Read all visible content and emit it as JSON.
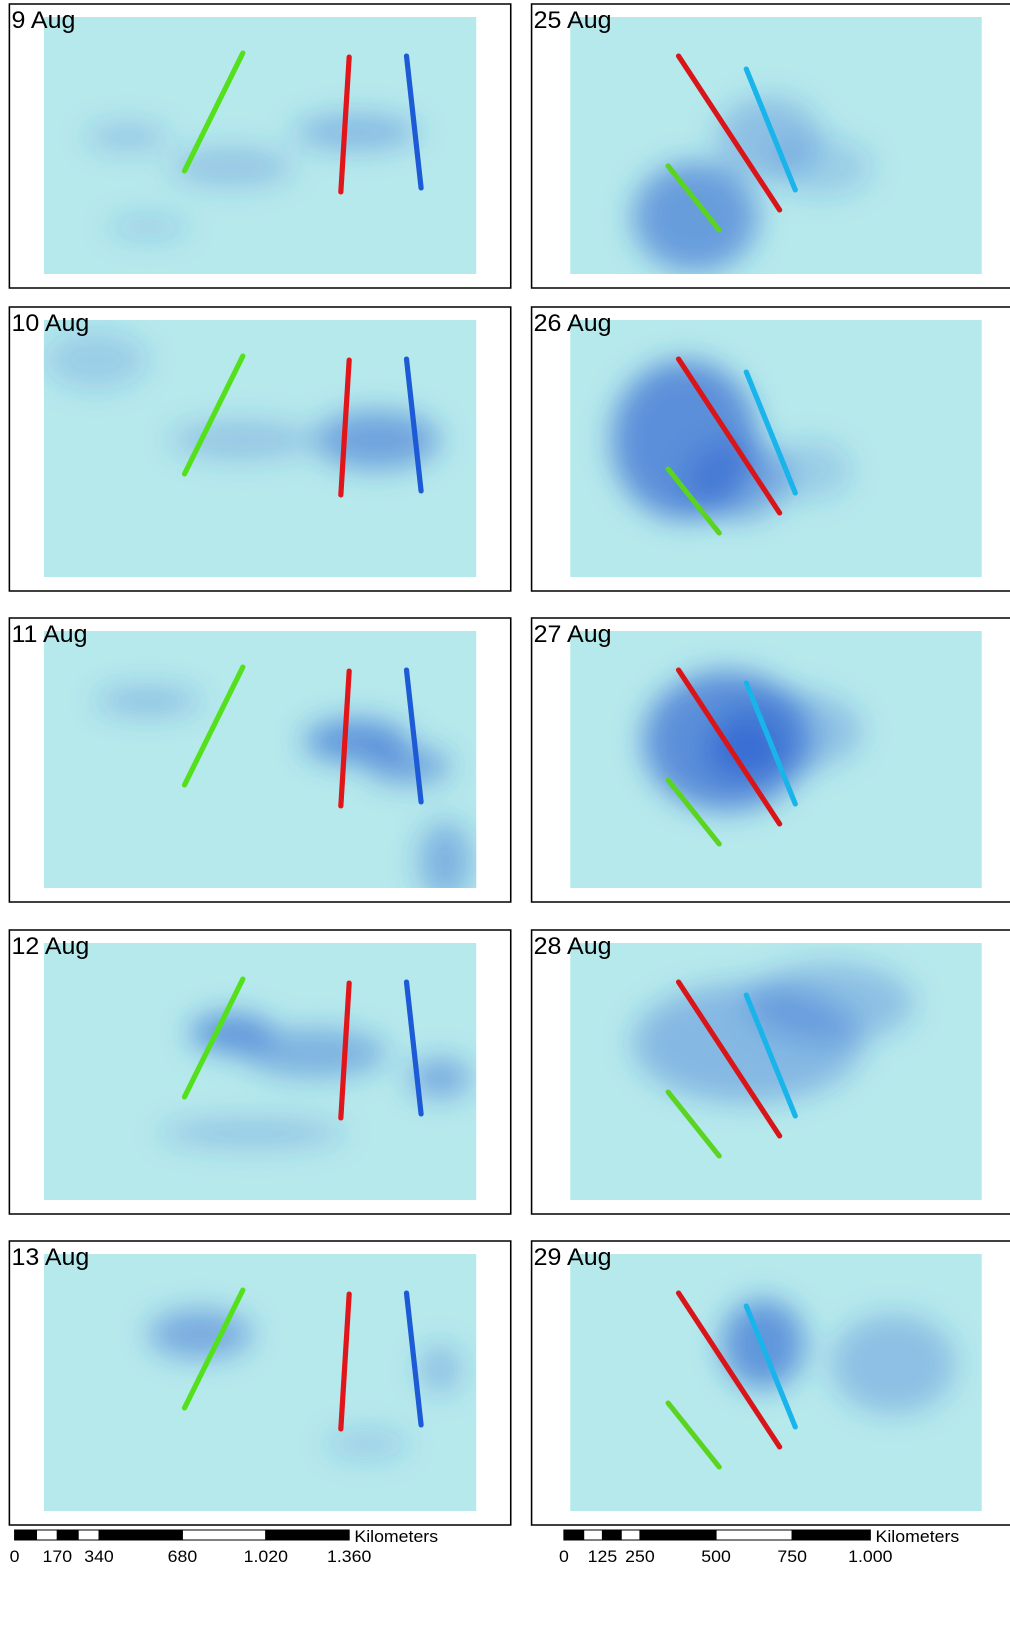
{
  "panels": [
    {
      "label": "9 Aug"
    },
    {
      "label": "25 Aug"
    },
    {
      "label": "10 Aug"
    },
    {
      "label": "26 Aug"
    },
    {
      "label": "11 Aug"
    },
    {
      "label": "27 Aug"
    },
    {
      "label": "12 Aug"
    },
    {
      "label": "28 Aug"
    },
    {
      "label": "13 Aug"
    },
    {
      "label": "29 Aug"
    }
  ],
  "scale_bars": [
    {
      "unit": "Kilometers",
      "ticks": [
        "0",
        "170",
        "340",
        "680",
        "1.020",
        "1.360"
      ]
    },
    {
      "unit": "Kilometers",
      "ticks": [
        "0",
        "125",
        "250",
        "500",
        "750",
        "1.000"
      ]
    }
  ]
}
